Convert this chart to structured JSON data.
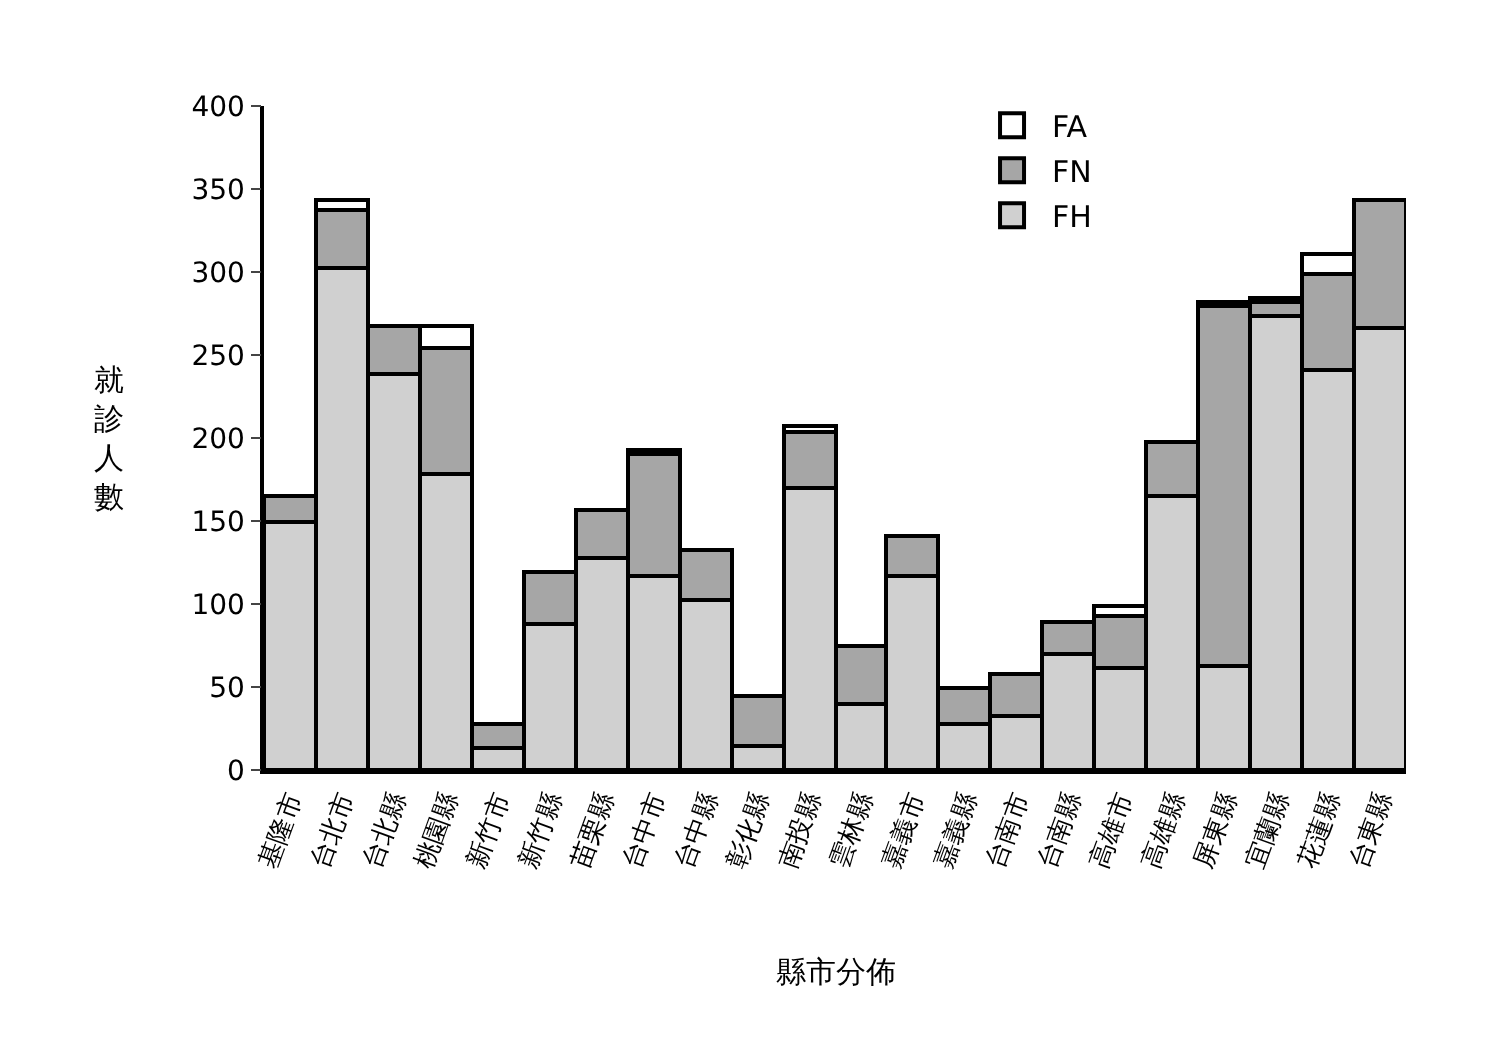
{
  "chart_data": {
    "type": "bar",
    "stacked": true,
    "xlabel": "縣市分佈",
    "ylabel": "就診人數",
    "categories": [
      "基隆市",
      "台北市",
      "台北縣",
      "桃園縣",
      "新竹市",
      "新竹縣",
      "苗栗縣",
      "台中市",
      "台中縣",
      "彰化縣",
      "南投縣",
      "雲林縣",
      "嘉義市",
      "嘉義縣",
      "台南市",
      "台南縣",
      "高雄市",
      "高雄縣",
      "屏東縣",
      "宜蘭縣",
      "花蓮縣",
      "台東縣"
    ],
    "series": [
      {
        "name": "FH",
        "color": "#d0d0d0",
        "values": [
          150,
          302,
          238,
          178,
          13,
          88,
          128,
          117,
          103,
          15,
          170,
          40,
          117,
          28,
          33,
          70,
          61,
          165,
          63,
          274,
          241,
          266
        ]
      },
      {
        "name": "FN",
        "color": "#a6a6a6",
        "values": [
          15,
          35,
          29,
          76,
          15,
          31,
          29,
          73,
          29,
          29,
          34,
          35,
          24,
          21,
          25,
          19,
          32,
          33,
          217,
          8,
          58,
          77
        ]
      },
      {
        "name": "FA",
        "color": "#ffffff",
        "values": [
          null,
          6,
          null,
          13,
          null,
          null,
          null,
          3,
          null,
          null,
          3,
          null,
          null,
          null,
          null,
          null,
          6,
          null,
          2,
          2,
          12,
          null
        ]
      }
    ],
    "ylim": [
      0,
      400
    ],
    "yticks": [
      0,
      50,
      100,
      150,
      200,
      250,
      300,
      350,
      400
    ],
    "legend": "top"
  }
}
